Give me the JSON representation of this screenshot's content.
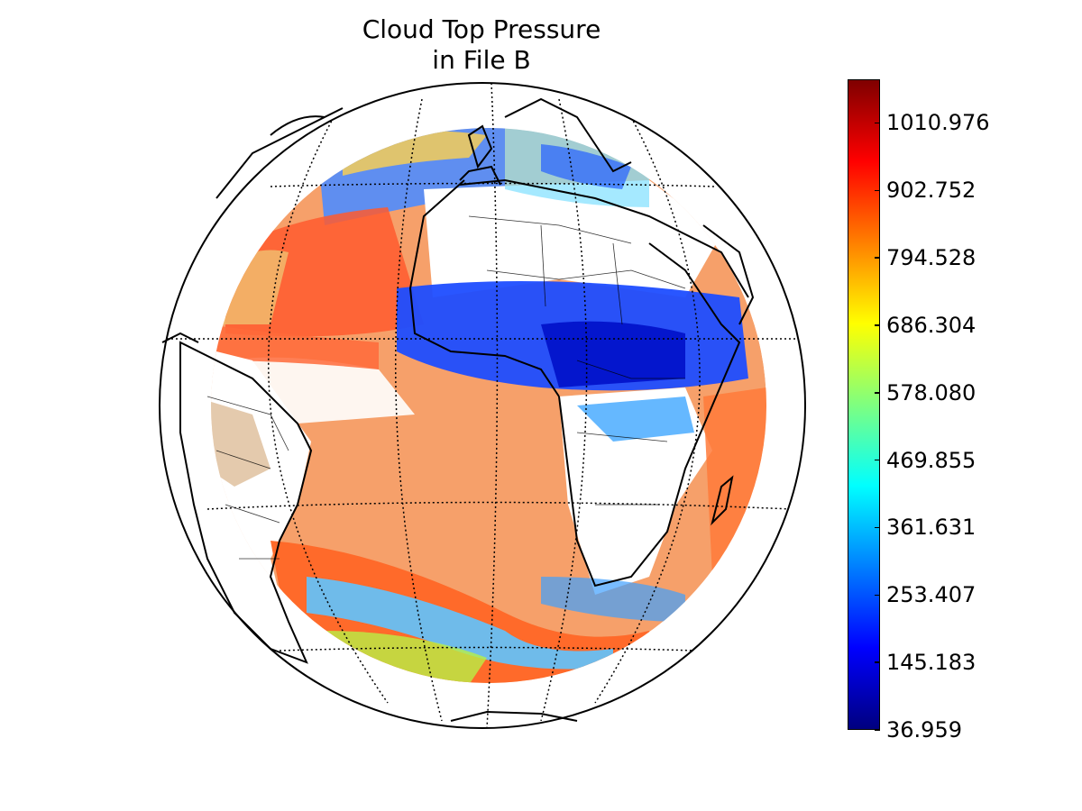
{
  "title": {
    "line1": "Cloud Top Pressure",
    "line2": "in File B"
  },
  "map": {
    "projection": "orthographic",
    "graticule": "dotted",
    "coastlines": true,
    "country_borders": true
  },
  "colorbar": {
    "colormap": "jet",
    "min": 36.959,
    "max": 1081.0,
    "ticks": [
      "36.959",
      "145.183",
      "253.407",
      "361.631",
      "469.855",
      "578.080",
      "686.304",
      "794.528",
      "902.752",
      "1010.976"
    ],
    "colors": [
      "#00007f",
      "#0000ff",
      "#007fff",
      "#00ffff",
      "#7fff7f",
      "#ffff00",
      "#ff7f00",
      "#ff0000",
      "#7f0000"
    ]
  }
}
